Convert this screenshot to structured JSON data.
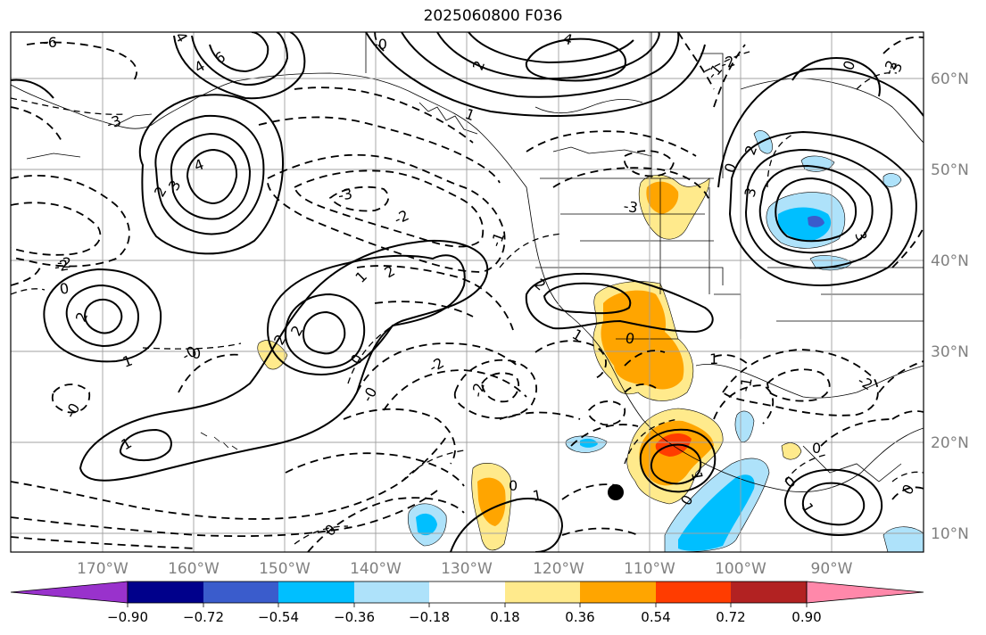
{
  "title": "2025060800 F036",
  "latitudes": [
    "10°N",
    "20°N",
    "30°N",
    "40°N",
    "50°N",
    "60°N"
  ],
  "longitudes": [
    "170°W",
    "160°W",
    "150°W",
    "140°W",
    "130°W",
    "120°W",
    "110°W",
    "100°W",
    "90°W"
  ],
  "colorbar": {
    "colors": [
      "#9932cc",
      "#00008b",
      "#3a5ccc",
      "#00bfff",
      "#aee2fa",
      "#ffffff",
      "#ffea8c",
      "#ffa500",
      "#ff3c00",
      "#b22222",
      "#ff88aa"
    ],
    "tick_labels": [
      "−0.90",
      "−0.72",
      "−0.54",
      "−0.36",
      "−0.18",
      "0.18",
      "0.36",
      "0.54",
      "0.72",
      "0.90"
    ]
  },
  "contour_labels": {
    "solid": [
      "4",
      "6",
      "4",
      "3",
      "2",
      "4",
      "4",
      "2",
      "3",
      "2",
      "2",
      "2",
      "2",
      "1",
      "1",
      "1",
      "1",
      "1",
      "0",
      "1",
      "1",
      "1",
      "3",
      "3",
      "1",
      "2",
      "2"
    ],
    "dashed": [
      "-6",
      "-3",
      "-3",
      "-2",
      "-2",
      "-1",
      "-0",
      "-0",
      "-0",
      "-2",
      "-2",
      "-2",
      "-3",
      "-2",
      "-2",
      "-1",
      "-0",
      "-2",
      "-1"
    ],
    "zero": [
      "0",
      "0",
      "0",
      "0",
      "0",
      "0",
      "0",
      "0",
      "0",
      "0",
      "0"
    ]
  }
}
